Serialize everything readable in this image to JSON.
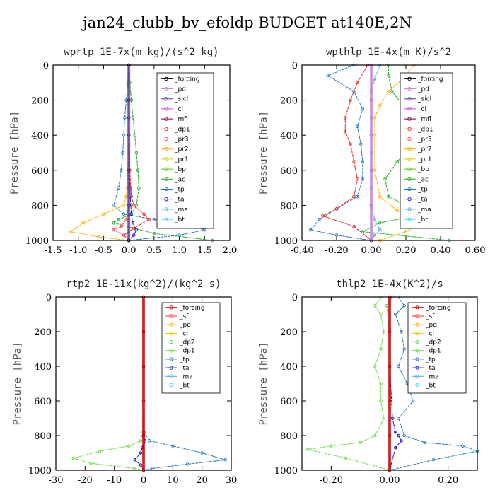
{
  "title": "jan24_clubb_bv_efoldp  BUDGET at140E,2N",
  "colors": {
    "_forcing_w": "#000000",
    "_forcing_r": "#cc0000",
    "_pd": "#cc88dd",
    "_sicl": "#6a3d9a",
    "_cl": "#cc44cc",
    "_mfl": "#880044",
    "_dp1": "#ee2222",
    "_pr3": "#ff4444",
    "_pr2": "#ffaa00",
    "_pr1": "#ddcc00",
    "_bp": "#55cc00",
    "_ac": "#22aa22",
    "_tp": "#2277bb",
    "_ta": "#1111cc",
    "_ma": "#44aadd",
    "_bt": "#33ccff",
    "_sf": "#ff3333",
    "_dp2": "#44cc44",
    "_dp1b": "#66dd44"
  },
  "chart_data": [
    {
      "type": "line",
      "title": "wprtp   1E-7x(m kg)/(s^2 kg)",
      "ylabel": "Pressure [hPa]",
      "xlim": [
        -1.5,
        2.0
      ],
      "ylim": [
        1000,
        0
      ],
      "xticks": [
        "-1.5",
        "-1.0",
        "-0.5",
        "0.0",
        "0.5",
        "1.0",
        "1.5",
        "2.0"
      ],
      "xtick_values": [
        -1.5,
        -1.0,
        -0.5,
        0.0,
        0.5,
        1.0,
        1.5,
        2.0
      ],
      "yticks": [
        "0",
        "200",
        "400",
        "600",
        "800",
        "1000"
      ],
      "ytick_values": [
        0,
        200,
        400,
        600,
        800,
        1000
      ],
      "legend": [
        "_forcing",
        "_pd",
        "_sicl",
        "_cl",
        "_mfl",
        "_dp1",
        "_pr3",
        "_pr2",
        "_pr1",
        "_bp",
        "_ac",
        "_tp",
        "_ta",
        "_ma",
        "_bt"
      ],
      "legend_colors": [
        "_forcing_w",
        "_pd",
        "_sicl",
        "_cl",
        "_mfl",
        "_dp1",
        "_pr3",
        "_pr2",
        "_pr1",
        "_bp",
        "_ac",
        "_tp",
        "_ta",
        "_ma",
        "_bt"
      ],
      "series": [
        {
          "name": "_ac",
          "color": "_ac",
          "x": [
            0.0,
            0.02,
            0.05,
            0.08,
            0.12,
            0.15,
            0.18,
            0.2,
            0.15,
            0.05,
            -0.2,
            -0.3,
            0.5,
            1.65
          ],
          "y": [
            0,
            100,
            200,
            300,
            400,
            500,
            600,
            700,
            800,
            850,
            880,
            900,
            960,
            1000
          ]
        },
        {
          "name": "_tp",
          "color": "_tp",
          "x": [
            0.0,
            -0.02,
            -0.05,
            -0.08,
            -0.1,
            -0.12,
            -0.15,
            -0.2,
            -0.3,
            -0.1,
            0.5,
            1.2,
            1.5,
            1.0,
            0.0
          ],
          "y": [
            0,
            100,
            200,
            300,
            400,
            500,
            600,
            700,
            800,
            850,
            880,
            910,
            940,
            970,
            1000
          ]
        },
        {
          "name": "_pr2",
          "color": "_pr2",
          "x": [
            0.0,
            0.0,
            0.0,
            -0.02,
            -0.03,
            -0.05,
            -0.1,
            -0.5,
            -0.9,
            -1.15,
            -0.6,
            0.0
          ],
          "y": [
            0,
            200,
            400,
            600,
            700,
            750,
            800,
            850,
            900,
            950,
            980,
            1000
          ]
        },
        {
          "name": "_dp1",
          "color": "_dp1",
          "x": [
            0.0,
            0.0,
            0.02,
            0.05,
            0.1,
            0.3,
            0.4,
            0.1,
            -0.1,
            0.0
          ],
          "y": [
            0,
            300,
            600,
            750,
            800,
            850,
            880,
            930,
            970,
            1000
          ]
        },
        {
          "name": "_pr3",
          "color": "_pr3",
          "x": [
            0.0,
            0.0,
            0.0,
            -0.05,
            -0.15,
            -0.3,
            -0.1,
            0.0
          ],
          "y": [
            0,
            400,
            800,
            880,
            920,
            940,
            970,
            1000
          ]
        },
        {
          "name": "_ta",
          "color": "_ta",
          "x": [
            0.0,
            0.0,
            0.02,
            0.05,
            0.08,
            0.15,
            0.1,
            0.0
          ],
          "y": [
            0,
            300,
            700,
            850,
            900,
            940,
            970,
            1000
          ]
        },
        {
          "name": "_forcing",
          "color": "_forcing_w",
          "x": [
            0.0,
            0.0,
            0.0,
            0.0,
            0.0,
            0.0
          ],
          "y": [
            0,
            200,
            400,
            600,
            800,
            1000
          ]
        }
      ]
    },
    {
      "type": "line",
      "title": "wpthlp   1E-4x(m K)/s^2",
      "ylabel": "Pressure [hPa]",
      "xlim": [
        -0.4,
        0.6
      ],
      "ylim": [
        1000,
        0
      ],
      "xticks": [
        "-0.40",
        "-0.20",
        "0.00",
        "0.20",
        "0.40",
        "0.60"
      ],
      "xtick_values": [
        -0.4,
        -0.2,
        0.0,
        0.2,
        0.4,
        0.6
      ],
      "yticks": [
        "0",
        "200",
        "400",
        "600",
        "800",
        "1000"
      ],
      "ytick_values": [
        0,
        200,
        400,
        600,
        800,
        1000
      ],
      "legend": [
        "_forcing",
        "_pd",
        "_sicl",
        "_cl",
        "_mfl",
        "_dp1",
        "_pr3",
        "_pr2",
        "_pr1",
        "_bp",
        "_ac",
        "_tp",
        "_ta",
        "_ma",
        "_bt"
      ],
      "legend_colors": [
        "_forcing_w",
        "_pd",
        "_sicl",
        "_cl",
        "_mfl",
        "_dp1",
        "_pr3",
        "_pr2",
        "_pr1",
        "_bp",
        "_ac",
        "_tp",
        "_ta",
        "_ma",
        "_bt"
      ],
      "series": [
        {
          "name": "_ac",
          "color": "_ac",
          "x": [
            0.1,
            0.1,
            0.12,
            0.2,
            0.3,
            0.25,
            0.15,
            0.08,
            0.1,
            0.2,
            0.3,
            0.05,
            -0.05,
            0.45
          ],
          "y": [
            0,
            60,
            150,
            250,
            370,
            450,
            550,
            650,
            750,
            800,
            850,
            900,
            950,
            1000
          ]
        },
        {
          "name": "_tp",
          "color": "_tp",
          "x": [
            -0.1,
            -0.25,
            -0.1,
            -0.05,
            -0.08,
            -0.06,
            -0.05,
            -0.05,
            -0.08,
            -0.2,
            -0.3,
            -0.35,
            -0.2,
            0.0
          ],
          "y": [
            0,
            60,
            150,
            250,
            350,
            450,
            550,
            650,
            750,
            820,
            880,
            940,
            970,
            1000
          ]
        },
        {
          "name": "_dp1",
          "color": "_dp1",
          "x": [
            -0.02,
            -0.08,
            -0.12,
            -0.15,
            -0.15,
            -0.12,
            -0.1,
            -0.08,
            -0.1,
            -0.2,
            -0.28,
            -0.1,
            0.0
          ],
          "y": [
            0,
            100,
            200,
            300,
            380,
            450,
            550,
            650,
            750,
            820,
            860,
            920,
            1000
          ]
        },
        {
          "name": "_pr2",
          "color": "_pr2",
          "x": [
            0.25,
            0.18,
            0.1,
            0.05,
            0.02,
            0.02,
            0.02,
            0.05,
            0.15,
            0.3,
            0.2,
            0.05
          ],
          "y": [
            0,
            80,
            150,
            230,
            300,
            400,
            600,
            750,
            830,
            900,
            950,
            1000
          ]
        },
        {
          "name": "_ma",
          "color": "_ma",
          "x": [
            0.05,
            0.02,
            0.0,
            0.0,
            0.0,
            0.0,
            0.0,
            0.02,
            0.05,
            0.02,
            0.0
          ],
          "y": [
            0,
            80,
            150,
            300,
            500,
            700,
            800,
            880,
            940,
            970,
            1000
          ]
        },
        {
          "name": "_forcing",
          "color": "_sicl",
          "x": [
            0.0,
            0.0,
            0.0,
            0.0,
            0.0,
            0.0
          ],
          "y": [
            0,
            200,
            400,
            600,
            800,
            1000
          ]
        }
      ]
    },
    {
      "type": "line",
      "title": "rtp2   1E-11x(kg^2)/(kg^2 s)",
      "ylabel": "Pressure [hPa]",
      "xlim": [
        -30,
        30
      ],
      "ylim": [
        1000,
        0
      ],
      "xticks": [
        "-30",
        "-20",
        "-10",
        "0",
        "10",
        "20",
        "30"
      ],
      "xtick_values": [
        -30,
        -20,
        -10,
        0,
        10,
        20,
        30
      ],
      "yticks": [
        "0",
        "200",
        "400",
        "600",
        "800",
        "1000"
      ],
      "ytick_values": [
        0,
        200,
        400,
        600,
        800,
        1000
      ],
      "legend": [
        "_forcing",
        "_sf",
        "_pd",
        "_cl",
        "_dp2",
        "_dp1",
        "_tp",
        "_ta",
        "_ma",
        "_bt"
      ],
      "legend_colors": [
        "_forcing_r",
        "_sf",
        "_pr2",
        "_pr1",
        "_dp2",
        "_dp1b",
        "_tp",
        "_ta",
        "_ma",
        "_bt"
      ],
      "series": [
        {
          "name": "_dp1",
          "color": "_dp1b",
          "x": [
            0.0,
            0.0,
            0.0,
            -0.2,
            -1.0,
            -5.0,
            -15.0,
            -24.0,
            -18.0,
            -3.0,
            0.0
          ],
          "y": [
            0,
            200,
            600,
            780,
            830,
            860,
            890,
            930,
            960,
            990,
            1000
          ]
        },
        {
          "name": "_tp",
          "color": "_tp",
          "x": [
            0.0,
            0.0,
            0.0,
            0.2,
            2.0,
            10.0,
            20.0,
            28.0,
            15.0,
            3.0,
            0.0
          ],
          "y": [
            0,
            200,
            600,
            780,
            830,
            860,
            900,
            940,
            965,
            990,
            1000
          ]
        },
        {
          "name": "_ta",
          "color": "_ta",
          "x": [
            0.0,
            0.0,
            0.0,
            0.5,
            -0.5,
            -1.0,
            -3.0,
            -1.0,
            0.0
          ],
          "y": [
            0,
            400,
            800,
            830,
            870,
            900,
            940,
            970,
            1000
          ]
        },
        {
          "name": "_forcing",
          "color": "_forcing_r",
          "x": [
            0.0,
            0.0,
            0.0,
            0.0,
            0.0,
            0.0
          ],
          "y": [
            0,
            200,
            400,
            600,
            800,
            1000
          ]
        }
      ]
    },
    {
      "type": "line",
      "title": "thlp2   1E-4x(K^2)/s",
      "ylabel": "Pressure [hPa]",
      "xlim": [
        -0.3,
        0.3
      ],
      "ylim": [
        1000,
        0
      ],
      "xticks": [
        "-0.20",
        "0.00",
        "0.20"
      ],
      "xtick_values": [
        -0.2,
        0.0,
        0.2
      ],
      "yticks": [
        "0",
        "200",
        "400",
        "600",
        "800",
        "1000"
      ],
      "ytick_values": [
        0,
        200,
        400,
        600,
        800,
        1000
      ],
      "legend": [
        "_forcing",
        "_sf",
        "_pd",
        "_cl",
        "_dp2",
        "_dp1",
        "_tp",
        "_ta",
        "_ma",
        "_bt"
      ],
      "legend_colors": [
        "_forcing_r",
        "_sf",
        "_pr2",
        "_pr1",
        "_dp2",
        "_dp1b",
        "_tp",
        "_ta",
        "_ma",
        "_bt"
      ],
      "series": [
        {
          "name": "_dp1",
          "color": "_dp1b",
          "x": [
            -0.03,
            -0.05,
            -0.03,
            -0.02,
            -0.03,
            -0.05,
            -0.03,
            -0.03,
            -0.02,
            -0.05,
            -0.1,
            -0.2,
            -0.28,
            -0.15,
            0.0
          ],
          "y": [
            0,
            50,
            100,
            200,
            300,
            400,
            500,
            600,
            700,
            800,
            840,
            860,
            880,
            930,
            1000
          ]
        },
        {
          "name": "_tp",
          "color": "_tp",
          "x": [
            0.03,
            0.05,
            0.02,
            0.04,
            0.05,
            0.03,
            0.06,
            0.08,
            0.03,
            0.05,
            0.12,
            0.25,
            0.3,
            0.15,
            0.0
          ],
          "y": [
            0,
            50,
            100,
            200,
            300,
            400,
            500,
            600,
            700,
            800,
            840,
            860,
            890,
            940,
            1000
          ]
        },
        {
          "name": "_ta",
          "color": "_ta",
          "x": [
            0.0,
            0.0,
            0.01,
            0.02,
            0.03,
            0.04,
            0.02,
            0.0
          ],
          "y": [
            0,
            400,
            700,
            780,
            800,
            830,
            870,
            1000
          ]
        },
        {
          "name": "_dp2",
          "color": "_dp2",
          "x": [
            0.01,
            -0.01,
            0.0,
            0.0,
            0.0
          ],
          "y": [
            0,
            50,
            200,
            600,
            1000
          ]
        },
        {
          "name": "_forcing",
          "color": "_forcing_r",
          "x": [
            0.0,
            0.0,
            0.0,
            0.0,
            0.0,
            0.0
          ],
          "y": [
            0,
            200,
            400,
            600,
            800,
            1000
          ]
        }
      ]
    }
  ]
}
